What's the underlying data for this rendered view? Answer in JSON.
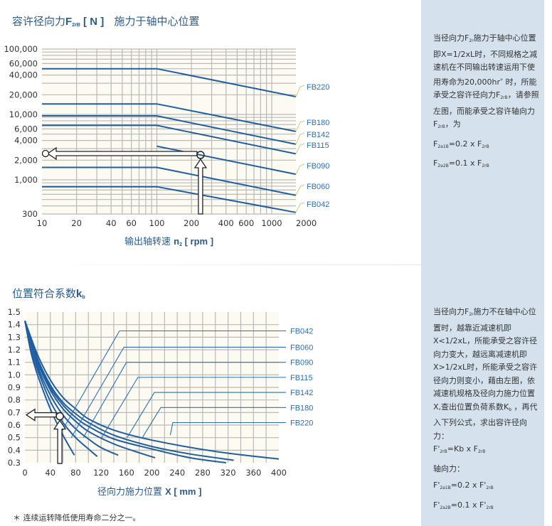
{
  "colors": {
    "series_line": "#1f5fa0",
    "label_text": "#2a70b8",
    "leader": "#e3c46a",
    "panel_bg": "#d5e2ee",
    "plot_bg": "#fdfaf2",
    "grid": "#b9b9b9"
  },
  "top": {
    "title_main": "容许径向力",
    "title_f": "F",
    "title_sub": "2rB",
    "title_unit": " [ N ]",
    "title_cond": "施力于轴中心位置",
    "xlabel_cn": "输出轴转速 ",
    "xlabel_n": "n",
    "xlabel_sub": "2",
    "xlabel_unit": " [ rpm ]"
  },
  "bottom": {
    "title_main": "位置符合系数",
    "title_k": "k",
    "title_sub": "b",
    "xlabel_cn": "径向力施力位置  ",
    "xlabel_x": "X [ mm ]"
  },
  "footnote": "＊ 连续运转降低使用寿命二分之一。",
  "panel1": {
    "paragraphs": [
      [
        {
          "t": "当径向力F"
        },
        {
          "t": "2r",
          "s": "sub"
        },
        {
          "t": "施力于轴中心位置即X=1/2xL时，不同规格之减速机在不同输出转速运用下使用寿命为20,000hr"
        },
        {
          "t": "*",
          "s": "sup"
        },
        {
          "t": " 时，所能承受之容许径向力F"
        },
        {
          "t": "2rB",
          "s": "sub"
        },
        {
          "t": "，请参照左图，而能承受之容许轴向力F"
        },
        {
          "t": "2rB",
          "s": "sub"
        },
        {
          "t": "，为"
        }
      ],
      [
        {
          "t": "F"
        },
        {
          "t": "2a1B",
          "s": "sub"
        },
        {
          "t": "=0.2 x F"
        },
        {
          "t": "2rB",
          "s": "sub"
        }
      ],
      [
        {
          "t": "F"
        },
        {
          "t": "2a2B",
          "s": "sub"
        },
        {
          "t": "=0.1 x F"
        },
        {
          "t": "2rB",
          "s": "sub"
        }
      ]
    ]
  },
  "panel2": {
    "paragraphs": [
      [
        {
          "t": "当径向力F"
        },
        {
          "t": "2r",
          "s": "sub"
        },
        {
          "t": "施力不在轴中心位置时，越靠近减速机即X<1/2xL，所能承受之容许径向力变大，越远离减速机即X>1/2xL时，所能承受之容许径向力则变小，藉由左图，依减速机规格及径向力施力位置X,查出位置负荷系数K"
        },
        {
          "t": "b",
          "s": "sub"
        },
        {
          "t": " ，再代入下列公式，求出容许径向力："
        },
        {
          "t": "\n"
        },
        {
          "t": "F'"
        },
        {
          "t": "2rB",
          "s": "sub"
        },
        {
          "t": "=Kb x F"
        },
        {
          "t": "2rB",
          "s": "sub"
        }
      ],
      [
        {
          "t": "轴向力："
        }
      ],
      [
        {
          "t": "F'"
        },
        {
          "t": "2a1B",
          "s": "sub"
        },
        {
          "t": "=0.2 x F'"
        },
        {
          "t": "2rB",
          "s": "sub"
        }
      ],
      [
        {
          "t": "F'"
        },
        {
          "t": "2a2B",
          "s": "sub"
        },
        {
          "t": "=0.1 x F'"
        },
        {
          "t": "2rB",
          "s": "sub"
        }
      ]
    ]
  },
  "chart_data": [
    {
      "type": "line",
      "xscale": "log",
      "yscale": "log",
      "xlim": [
        10,
        2000
      ],
      "ylim": [
        300,
        100000
      ],
      "grid": true,
      "xticks": [
        "10",
        "20",
        "40",
        "60",
        "100",
        "200",
        "400",
        "600",
        "1000",
        "2000"
      ],
      "yticks": [
        "100,000",
        "60,000",
        "40,000",
        "20,000",
        "10,000",
        "6,000",
        "4,000",
        "2,000",
        "1,000",
        "300"
      ],
      "series": [
        {
          "name": "FB220",
          "points": [
            [
              10,
              50000
            ],
            [
              100,
              50000
            ],
            [
              1620,
              18700
            ]
          ]
        },
        {
          "name": "FB180",
          "points": [
            [
              10,
              14500
            ],
            [
              100,
              14500
            ],
            [
              1620,
              5500
            ]
          ]
        },
        {
          "name": "FB142",
          "points": [
            [
              10,
              9500
            ],
            [
              100,
              9500
            ],
            [
              1620,
              3500
            ]
          ]
        },
        {
          "name": "FB115",
          "points": [
            [
              10,
              6800
            ],
            [
              100,
              6800
            ],
            [
              1620,
              2500
            ]
          ]
        },
        {
          "name": "FB090",
          "points": [
            [
              100,
              3270
            ],
            [
              1620,
              1220
            ]
          ]
        },
        {
          "name": "FB060",
          "points": [
            [
              10,
              1550
            ],
            [
              100,
              1550
            ],
            [
              1620,
              580
            ]
          ]
        },
        {
          "name": "FB042",
          "points": [
            [
              10,
              785
            ],
            [
              100,
              785
            ],
            [
              1620,
              318
            ]
          ]
        }
      ],
      "example": {
        "n": 240,
        "F": 2400
      }
    },
    {
      "type": "line",
      "xlim": [
        0,
        400
      ],
      "ylim": [
        0.3,
        1.5
      ],
      "grid": true,
      "xticks": [
        "0",
        "40",
        "80",
        "120",
        "160",
        "200",
        "240",
        "280",
        "320",
        "360",
        "400"
      ],
      "yticks": [
        "1.5",
        "1.4",
        "1.3",
        "1.2",
        "1.1",
        "1.0",
        "0.9",
        "0.8",
        "0.7",
        "0.6",
        "0.5",
        "0.4",
        "0.3"
      ],
      "series": [
        {
          "name": "FB042",
          "label_k": 1.35,
          "bend_x": 149,
          "leader_end": [
            58,
            0.55
          ],
          "points": [
            [
              0,
              1.43
            ],
            [
              10,
              1.17
            ],
            [
              20,
              1.0
            ],
            [
              40,
              0.73
            ],
            [
              60,
              0.52
            ],
            [
              78,
              0.36
            ]
          ]
        },
        {
          "name": "FB060",
          "label_k": 1.22,
          "bend_x": 156,
          "leader_end": [
            73,
            0.5
          ],
          "points": [
            [
              0,
              1.43
            ],
            [
              10,
              1.2
            ],
            [
              20,
              1.04
            ],
            [
              40,
              0.79
            ],
            [
              60,
              0.62
            ],
            [
              80,
              0.5
            ],
            [
              100,
              0.41
            ],
            [
              114,
              0.35
            ]
          ]
        },
        {
          "name": "FB090",
          "label_k": 1.1,
          "bend_x": 160,
          "leader_end": [
            92,
            0.5
          ],
          "points": [
            [
              0,
              1.43
            ],
            [
              20,
              1.07
            ],
            [
              40,
              0.84
            ],
            [
              60,
              0.68
            ],
            [
              80,
              0.57
            ],
            [
              100,
              0.49
            ],
            [
              120,
              0.42
            ],
            [
              147,
              0.36
            ]
          ]
        },
        {
          "name": "FB115",
          "label_k": 0.98,
          "bend_x": 178,
          "leader_end": [
            121,
            0.5
          ],
          "points": [
            [
              0,
              1.43
            ],
            [
              20,
              1.1
            ],
            [
              40,
              0.88
            ],
            [
              60,
              0.73
            ],
            [
              80,
              0.63
            ],
            [
              100,
              0.55
            ],
            [
              140,
              0.45
            ],
            [
              180,
              0.38
            ],
            [
              205,
              0.34
            ]
          ]
        },
        {
          "name": "FB142",
          "label_k": 0.86,
          "bend_x": 204,
          "leader_end": [
            161,
            0.5
          ],
          "points": [
            [
              0,
              1.43
            ],
            [
              20,
              1.12
            ],
            [
              40,
              0.9
            ],
            [
              60,
              0.76
            ],
            [
              80,
              0.66
            ],
            [
              100,
              0.59
            ],
            [
              140,
              0.49
            ],
            [
              200,
              0.41
            ],
            [
              260,
              0.34
            ],
            [
              317,
              0.3
            ]
          ]
        },
        {
          "name": "FB180",
          "label_k": 0.74,
          "bend_x": 214,
          "leader_end": [
            185,
            0.5
          ],
          "points": [
            [
              0,
              1.43
            ],
            [
              20,
              1.13
            ],
            [
              40,
              0.92
            ],
            [
              60,
              0.78
            ],
            [
              80,
              0.69
            ],
            [
              100,
              0.62
            ],
            [
              140,
              0.52
            ],
            [
              200,
              0.43
            ],
            [
              260,
              0.37
            ],
            [
              329,
              0.32
            ]
          ]
        },
        {
          "name": "FB220",
          "label_k": 0.62,
          "bend_x": 233,
          "leader_end": [
            229,
            0.52
          ],
          "points": [
            [
              0,
              1.43
            ],
            [
              20,
              1.16
            ],
            [
              40,
              0.96
            ],
            [
              60,
              0.82
            ],
            [
              80,
              0.73
            ],
            [
              100,
              0.65
            ],
            [
              140,
              0.56
            ],
            [
              200,
              0.48
            ],
            [
              300,
              0.39
            ],
            [
              400,
              0.33
            ]
          ]
        }
      ],
      "example": {
        "x": 55,
        "kb": 0.67
      }
    }
  ]
}
